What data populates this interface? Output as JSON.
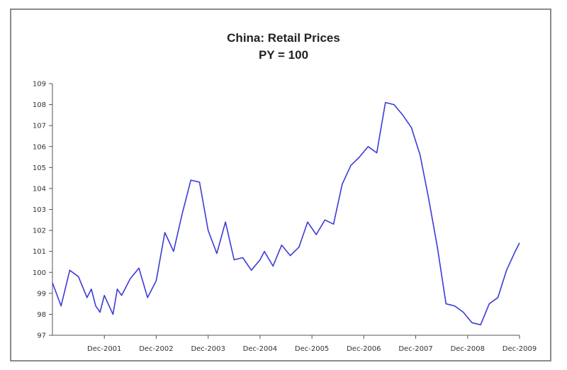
{
  "chart_data": {
    "type": "line",
    "title": "China: Retail Prices",
    "subtitle": "PY = 100",
    "xlabel": "",
    "ylabel": "",
    "ylim": [
      97,
      109
    ],
    "yticks": [
      97,
      98,
      99,
      100,
      101,
      102,
      103,
      104,
      105,
      106,
      107,
      108,
      109
    ],
    "xlim": [
      "2000-12",
      "2009-12"
    ],
    "xticks": [
      "Dec-2001",
      "Dec-2002",
      "Dec-2003",
      "Dec-2004",
      "Dec-2005",
      "Dec-2006",
      "Dec-2007",
      "Dec-2008",
      "Dec-2009"
    ],
    "grid": false,
    "legend": "none",
    "line_color": "#3b3bd6",
    "series": [
      {
        "x": [
          "2000-12",
          "2001-02",
          "2001-04",
          "2001-06",
          "2001-08",
          "2001-09",
          "2001-10",
          "2001-11",
          "2001-12",
          "2002-02",
          "2002-03",
          "2002-04",
          "2002-06",
          "2002-08",
          "2002-10",
          "2002-12",
          "2003-02",
          "2003-04",
          "2003-06",
          "2003-08",
          "2003-10",
          "2003-12",
          "2004-02",
          "2004-04",
          "2004-06",
          "2004-08",
          "2004-10",
          "2004-12",
          "2005-01",
          "2005-03",
          "2005-05",
          "2005-07",
          "2005-09",
          "2005-11",
          "2006-01",
          "2006-03",
          "2006-05",
          "2006-07",
          "2006-09",
          "2006-11",
          "2007-01",
          "2007-03",
          "2007-05",
          "2007-07",
          "2007-09",
          "2007-11",
          "2008-01",
          "2008-03",
          "2008-05",
          "2008-07",
          "2008-09",
          "2008-11",
          "2009-01",
          "2009-03",
          "2009-05",
          "2009-07",
          "2009-09",
          "2009-11",
          "2009-12"
        ],
        "values": [
          99.5,
          98.4,
          100.1,
          99.8,
          98.8,
          99.2,
          98.4,
          98.1,
          98.9,
          98.0,
          99.2,
          98.9,
          99.7,
          100.2,
          98.8,
          99.6,
          101.9,
          101.0,
          102.8,
          104.4,
          104.3,
          102.0,
          100.9,
          102.4,
          100.6,
          100.7,
          100.1,
          100.6,
          101.0,
          100.3,
          101.3,
          100.8,
          101.2,
          102.4,
          101.8,
          102.5,
          102.3,
          104.2,
          105.1,
          105.5,
          106.0,
          105.7,
          108.1,
          108.0,
          107.5,
          106.9,
          105.6,
          103.5,
          101.2,
          98.5,
          98.4,
          98.1,
          97.6,
          97.5,
          98.5,
          98.8,
          100.1,
          101.0,
          101.4
        ]
      }
    ]
  }
}
